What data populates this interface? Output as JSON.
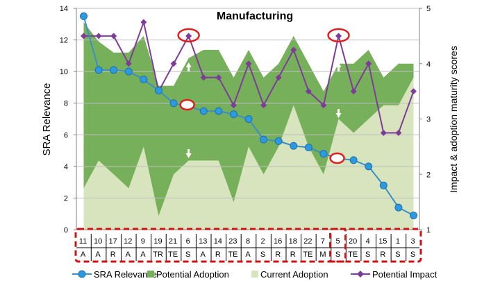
{
  "chart_data": {
    "type": "line",
    "title": "Manufacturing",
    "ylabel": "SRA  Relevance",
    "y2label": "Impact & adoption maturity scores",
    "ylim": [
      0,
      14
    ],
    "y2lim": [
      1,
      5
    ],
    "yticks": [
      "0",
      "2",
      "4",
      "6",
      "8",
      "10",
      "12",
      "14"
    ],
    "y2ticks": [
      "1",
      "2",
      "3",
      "4",
      "5"
    ],
    "categories": [
      {
        "num": "11",
        "cat": "A"
      },
      {
        "num": "10",
        "cat": "A"
      },
      {
        "num": "17",
        "cat": "R"
      },
      {
        "num": "12",
        "cat": "A"
      },
      {
        "num": "9",
        "cat": "A"
      },
      {
        "num": "19",
        "cat": "TR"
      },
      {
        "num": "21",
        "cat": "TE"
      },
      {
        "num": "6",
        "cat": "S"
      },
      {
        "num": "13",
        "cat": "A"
      },
      {
        "num": "14",
        "cat": "R"
      },
      {
        "num": "23",
        "cat": "TE"
      },
      {
        "num": "8",
        "cat": "A"
      },
      {
        "num": "2",
        "cat": "S"
      },
      {
        "num": "16",
        "cat": "R"
      },
      {
        "num": "18",
        "cat": "R"
      },
      {
        "num": "22",
        "cat": "TE"
      },
      {
        "num": "7",
        "cat": "M"
      },
      {
        "num": "5",
        "cat": "S"
      },
      {
        "num": "20",
        "cat": "TE"
      },
      {
        "num": "4",
        "cat": "S"
      },
      {
        "num": "15",
        "cat": "R"
      },
      {
        "num": "1",
        "cat": "S"
      },
      {
        "num": "3",
        "cat": "S"
      }
    ],
    "series": [
      {
        "name": "SRA Relevance",
        "axis": "primary",
        "kind": "line-marker",
        "color": "#3a8fc7",
        "values": [
          13.5,
          10.1,
          10.1,
          10.0,
          9.5,
          8.8,
          8.0,
          7.8,
          7.5,
          7.5,
          7.3,
          7.0,
          5.7,
          5.6,
          5.3,
          5.2,
          4.8,
          4.5,
          4.4,
          4.0,
          2.8,
          1.4,
          0.9
        ]
      },
      {
        "name": "Potential Adoption",
        "axis": "secondary",
        "kind": "area",
        "color": "#77b05a",
        "values": [
          4.75,
          4.4,
          4.2,
          4.2,
          4.5,
          3.6,
          3.6,
          4.1,
          4.25,
          4.25,
          3.75,
          4.25,
          3.75,
          4.0,
          4.5,
          4.0,
          3.5,
          4.0,
          4.0,
          4.25,
          3.75,
          4.0,
          4.0
        ]
      },
      {
        "name": "Current Adoption",
        "axis": "secondary",
        "kind": "area",
        "color": "#d7e4bd",
        "values": [
          1.75,
          2.25,
          2.0,
          1.75,
          2.5,
          1.25,
          2.0,
          2.25,
          2.25,
          2.25,
          1.5,
          2.5,
          2.0,
          2.5,
          3.25,
          2.5,
          2.0,
          3.0,
          2.75,
          3.0,
          3.25,
          3.25,
          3.75
        ]
      },
      {
        "name": "Potential Impact",
        "axis": "secondary",
        "kind": "line-marker",
        "color": "#7d3c98",
        "values": [
          4.5,
          4.5,
          4.5,
          4.0,
          4.75,
          3.5,
          4.0,
          4.5,
          3.75,
          3.75,
          3.25,
          4.0,
          3.25,
          3.75,
          4.25,
          3.5,
          3.25,
          4.5,
          3.5,
          4.0,
          2.75,
          2.75,
          3.5
        ]
      }
    ],
    "highlights": {
      "circles_impact": [
        7,
        17
      ],
      "circles_sra": [
        7,
        17
      ],
      "arrows_up": [
        7,
        17
      ],
      "arrows_down": [
        7,
        17
      ]
    },
    "legend": {
      "position": "bottom",
      "items": [
        "SRA Relevance",
        "Potential Adoption",
        "Current Adoption",
        "Potential Impact"
      ]
    }
  }
}
